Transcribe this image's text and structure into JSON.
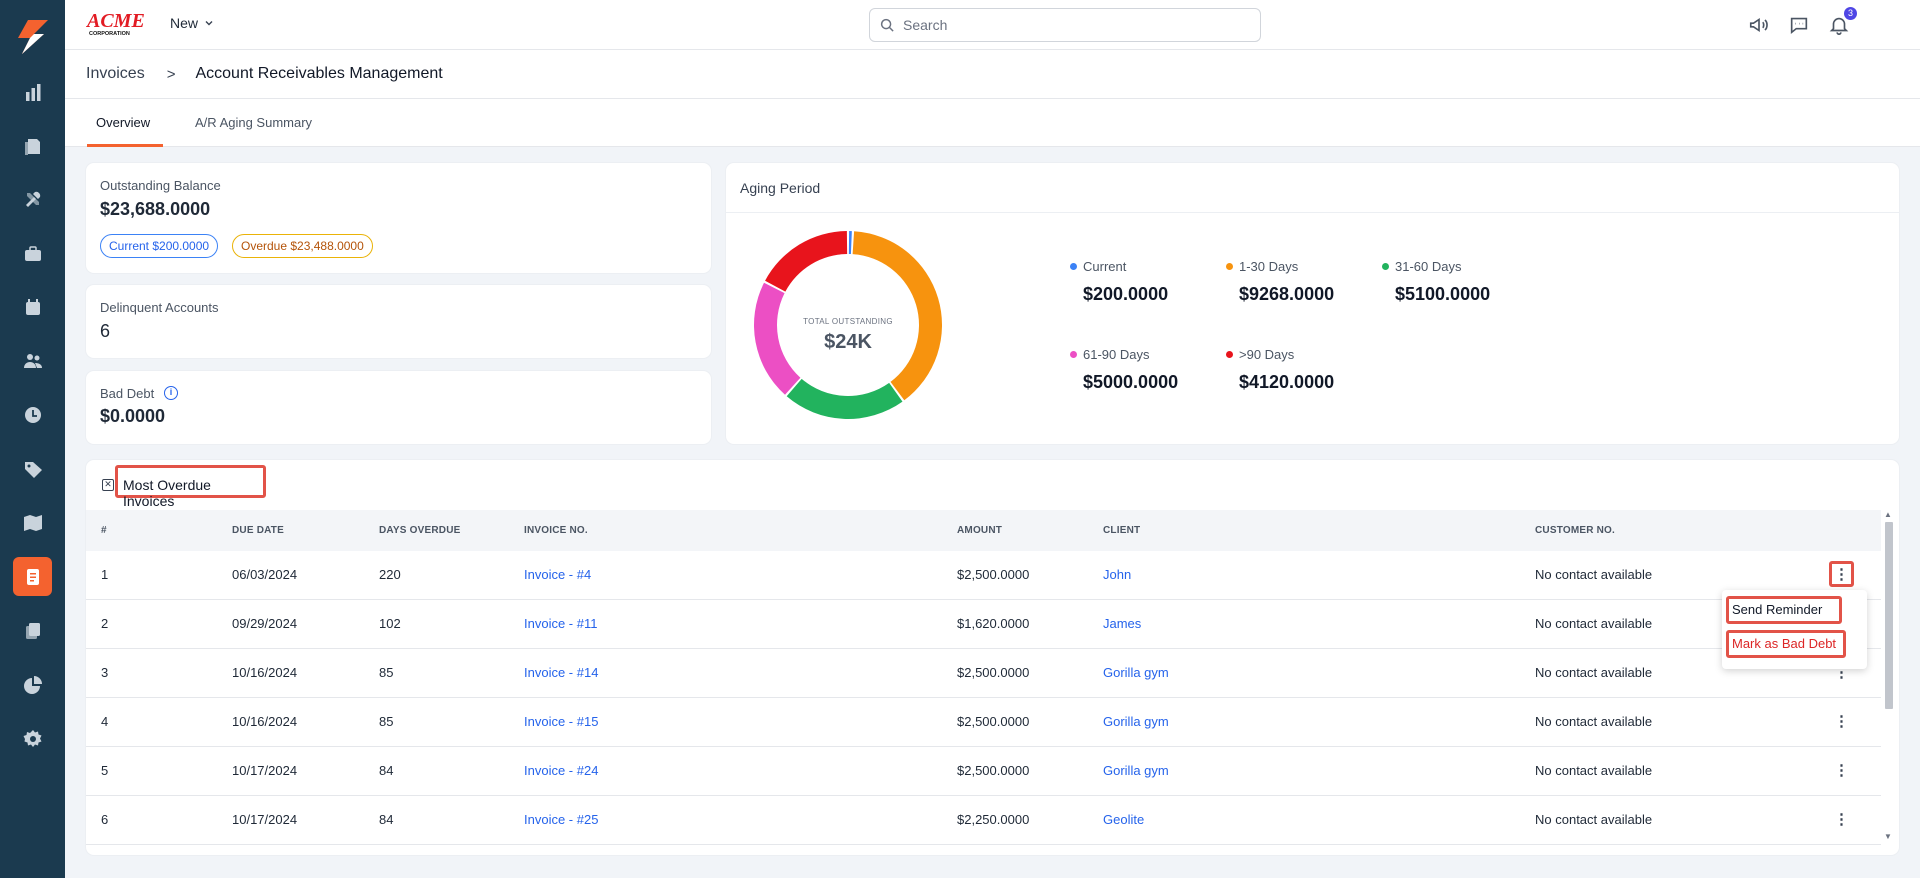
{
  "colors": {
    "sidebar_bg": "#1b3a4f",
    "accent": "#f4622f",
    "link": "#2563eb",
    "highlight_box": "#e25348",
    "current": "#3b82f6",
    "days_1_30": "#f7930e",
    "days_31_60": "#22b35e",
    "days_61_90": "#ec4fc4",
    "days_90_plus": "#e8141c"
  },
  "sidebar": {
    "logo_icon": "bolt-logo-icon",
    "items": [
      {
        "icon": "bar-chart-icon",
        "active": false
      },
      {
        "icon": "documents-icon",
        "active": false
      },
      {
        "icon": "tools-icon",
        "active": false
      },
      {
        "icon": "briefcase-icon",
        "active": false
      },
      {
        "icon": "calendar-icon",
        "active": false
      },
      {
        "icon": "users-icon",
        "active": false
      },
      {
        "icon": "clock-icon",
        "active": false
      },
      {
        "icon": "tag-icon",
        "active": false
      },
      {
        "icon": "map-icon",
        "active": false
      },
      {
        "icon": "invoice-icon",
        "active": true
      },
      {
        "icon": "copy-icon",
        "active": false
      },
      {
        "icon": "pie-chart-icon",
        "active": false
      },
      {
        "icon": "gear-icon",
        "active": false
      }
    ]
  },
  "topbar": {
    "brand_line1": "ACME",
    "brand_line2": "CORPORATION",
    "new_label": "New",
    "search_placeholder": "Search",
    "notification_count": "3"
  },
  "breadcrumb": {
    "parent": "Invoices",
    "separator": ">",
    "current": "Account Receivables Management"
  },
  "tabs": [
    {
      "label": "Overview",
      "active": true
    },
    {
      "label": "A/R Aging Summary",
      "active": false
    }
  ],
  "outstanding": {
    "label": "Outstanding Balance",
    "value": "$23,688.0000",
    "current_pill": "Current $200.0000",
    "overdue_pill": "Overdue $23,488.0000"
  },
  "delinquent": {
    "label": "Delinquent Accounts",
    "value": "6"
  },
  "bad_debt": {
    "label": "Bad Debt",
    "info_glyph": "i",
    "value": "$0.0000"
  },
  "aging": {
    "title": "Aging Period",
    "center_label": "TOTAL OUTSTANDING",
    "center_value": "$24K",
    "legend": [
      {
        "name": "Current",
        "value": "$200.0000"
      },
      {
        "name": "1-30 Days",
        "value": "$9268.0000"
      },
      {
        "name": "31-60 Days",
        "value": "$5100.0000"
      },
      {
        "name": "61-90 Days",
        "value": "$5000.0000"
      },
      {
        "name": ">90 Days",
        "value": "$4120.0000"
      }
    ]
  },
  "chart_data": {
    "type": "pie",
    "categories": [
      "Current",
      "1-30 Days",
      "31-60 Days",
      "61-90 Days",
      ">90 Days"
    ],
    "values": [
      200,
      9268,
      5100,
      5000,
      4120
    ],
    "title": "Aging Period",
    "center_label": "TOTAL OUTSTANDING",
    "center_value": "$24K"
  },
  "overdue_table": {
    "title": "Most Overdue Invoices",
    "title_icon_glyph": "✕",
    "columns": [
      "#",
      "DUE DATE",
      "DAYS OVERDUE",
      "INVOICE NO.",
      "AMOUNT",
      "CLIENT",
      "CUSTOMER NO."
    ],
    "rows": [
      {
        "num": "1",
        "due": "06/03/2024",
        "days": "220",
        "invoice": "Invoice - #4",
        "amount": "$2,500.0000",
        "client": "John",
        "customer": "No contact available"
      },
      {
        "num": "2",
        "due": "09/29/2024",
        "days": "102",
        "invoice": "Invoice - #11",
        "amount": "$1,620.0000",
        "client": "James",
        "customer": "No contact available"
      },
      {
        "num": "3",
        "due": "10/16/2024",
        "days": "85",
        "invoice": "Invoice - #14",
        "amount": "$2,500.0000",
        "client": "Gorilla gym",
        "customer": "No contact available"
      },
      {
        "num": "4",
        "due": "10/16/2024",
        "days": "85",
        "invoice": "Invoice - #15",
        "amount": "$2,500.0000",
        "client": "Gorilla gym",
        "customer": "No contact available"
      },
      {
        "num": "5",
        "due": "10/17/2024",
        "days": "84",
        "invoice": "Invoice - #24",
        "amount": "$2,500.0000",
        "client": "Gorilla gym",
        "customer": "No contact available"
      },
      {
        "num": "6",
        "due": "10/17/2024",
        "days": "84",
        "invoice": "Invoice - #25",
        "amount": "$2,250.0000",
        "client": "Geolite",
        "customer": "No contact available"
      }
    ],
    "kebab_glyph": "⋮",
    "scroll_up_glyph": "▲",
    "scroll_down_glyph": "▼"
  },
  "row_menu": {
    "send_reminder": "Send Reminder",
    "mark_bad_debt": "Mark as Bad Debt"
  }
}
